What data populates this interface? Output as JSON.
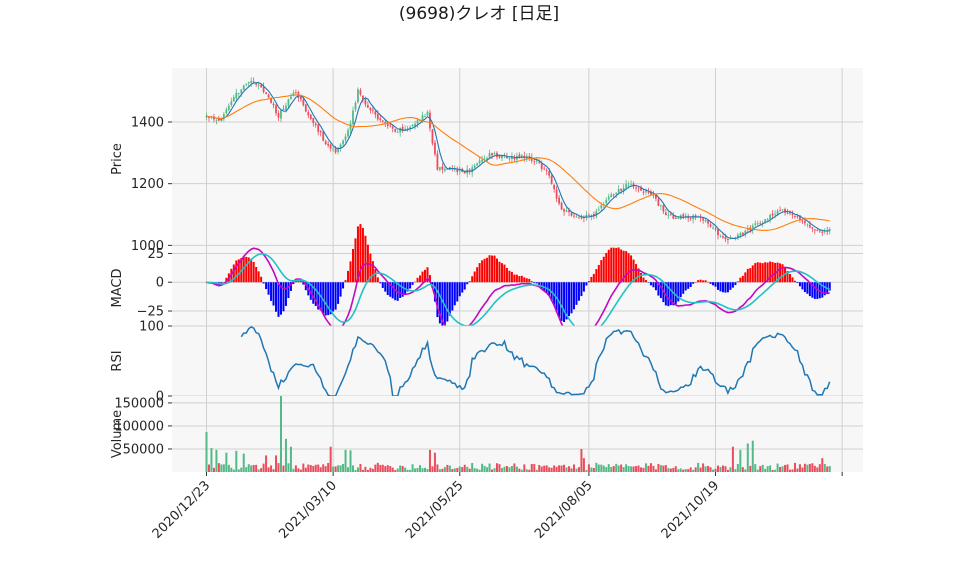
{
  "chart_data": {
    "type": "candlestick",
    "title": "(9698)クレオ  [日足]",
    "colors": {
      "up": "#53b987",
      "down": "#eb4d5c",
      "ma_short": "#1f77b4",
      "ma_long": "#ff7f0e",
      "macd": "#c20ac2",
      "signal": "#22c1c3",
      "hist_pos": "#ff0000",
      "hist_neg": "#0000ff",
      "rsi": "#1f77b4",
      "vol_up": "#53b987",
      "vol_down": "#eb4d5c",
      "panel_bg": "#f7f7f7",
      "grid": "#d0d0d0"
    },
    "x_axis": {
      "n_days": 252,
      "tick_indices": [
        0,
        51,
        102,
        154,
        205,
        256
      ],
      "tick_labels": [
        "2020/12/23",
        "2021/03/10",
        "2021/05/25",
        "2021/08/05",
        "2021/10/19",
        ""
      ]
    },
    "price_panel": {
      "ylabel": "Price",
      "ylim": [
        985,
        1575
      ],
      "yticks": [
        1000,
        1200,
        1400
      ],
      "ytick_labels": [
        "1000",
        "1200",
        "1400"
      ],
      "anchors": [
        [
          0,
          1420
        ],
        [
          5,
          1400
        ],
        [
          9,
          1460
        ],
        [
          13,
          1500
        ],
        [
          17,
          1530
        ],
        [
          21,
          1520
        ],
        [
          25,
          1480
        ],
        [
          29,
          1420
        ],
        [
          33,
          1470
        ],
        [
          36,
          1500
        ],
        [
          40,
          1440
        ],
        [
          44,
          1390
        ],
        [
          48,
          1330
        ],
        [
          52,
          1300
        ],
        [
          55,
          1340
        ],
        [
          58,
          1400
        ],
        [
          61,
          1500
        ],
        [
          64,
          1460
        ],
        [
          68,
          1420
        ],
        [
          72,
          1390
        ],
        [
          76,
          1370
        ],
        [
          80,
          1380
        ],
        [
          84,
          1400
        ],
        [
          89,
          1430
        ],
        [
          91,
          1330
        ],
        [
          93,
          1250
        ],
        [
          97,
          1250
        ],
        [
          101,
          1240
        ],
        [
          106,
          1240
        ],
        [
          110,
          1270
        ],
        [
          114,
          1295
        ],
        [
          118,
          1290
        ],
        [
          123,
          1285
        ],
        [
          128,
          1285
        ],
        [
          133,
          1270
        ],
        [
          138,
          1230
        ],
        [
          141,
          1150
        ],
        [
          144,
          1110
        ],
        [
          148,
          1100
        ],
        [
          152,
          1090
        ],
        [
          156,
          1100
        ],
        [
          160,
          1140
        ],
        [
          165,
          1170
        ],
        [
          170,
          1200
        ],
        [
          175,
          1180
        ],
        [
          180,
          1160
        ],
        [
          184,
          1110
        ],
        [
          188,
          1090
        ],
        [
          193,
          1090
        ],
        [
          198,
          1090
        ],
        [
          202,
          1075
        ],
        [
          207,
          1030
        ],
        [
          210,
          1020
        ],
        [
          214,
          1030
        ],
        [
          218,
          1050
        ],
        [
          222,
          1070
        ],
        [
          226,
          1090
        ],
        [
          230,
          1110
        ],
        [
          234,
          1110
        ],
        [
          238,
          1090
        ],
        [
          241,
          1075
        ],
        [
          244,
          1060
        ],
        [
          247,
          1040
        ],
        [
          251,
          1050
        ]
      ]
    },
    "macd_panel": {
      "ylabel": "MACD",
      "ylim": [
        -38,
        28
      ],
      "yticks": [
        25,
        0,
        -25
      ],
      "ytick_labels": [
        "25",
        "0",
        "−25"
      ]
    },
    "rsi_panel": {
      "ylabel": "RSI",
      "ylim": [
        0,
        100
      ],
      "yticks": [
        100,
        0
      ],
      "ytick_labels": [
        "100",
        "0"
      ]
    },
    "volume_panel": {
      "ylabel": "Volume",
      "ylim": [
        0,
        165000
      ],
      "yticks": [
        150000,
        100000,
        50000
      ],
      "ytick_labels": [
        "150000",
        "100000",
        "50000"
      ],
      "spikes": [
        [
          0,
          87000
        ],
        [
          2,
          52000
        ],
        [
          4,
          48000
        ],
        [
          8,
          42000
        ],
        [
          12,
          46000
        ],
        [
          15,
          40000
        ],
        [
          24,
          36000
        ],
        [
          28,
          36000
        ],
        [
          30,
          165000
        ],
        [
          32,
          72000
        ],
        [
          34,
          55000
        ],
        [
          50,
          55000
        ],
        [
          56,
          48000
        ],
        [
          58,
          47000
        ],
        [
          90,
          48000
        ],
        [
          92,
          42000
        ],
        [
          151,
          50000
        ],
        [
          152,
          30000
        ],
        [
          212,
          55000
        ],
        [
          215,
          48000
        ],
        [
          218,
          62000
        ],
        [
          220,
          68000
        ],
        [
          248,
          30000
        ]
      ]
    }
  }
}
